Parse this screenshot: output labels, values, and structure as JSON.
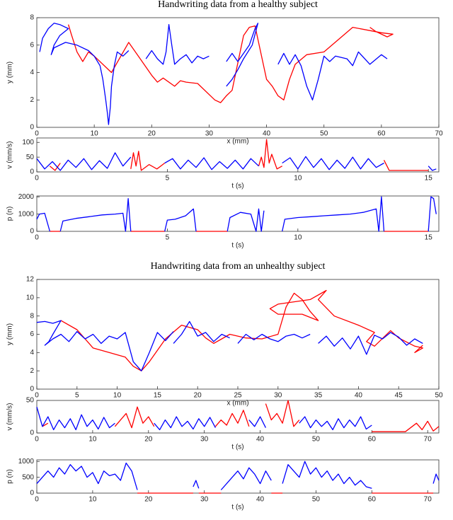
{
  "chart_data": [
    {
      "type": "line",
      "title": "Handwriting data from a healthy subject",
      "xlabel": "x (mm)",
      "ylabel": "y (mm)",
      "xlim": [
        0,
        70
      ],
      "ylim": [
        0,
        8
      ],
      "xticks": [
        0,
        10,
        20,
        30,
        40,
        50,
        60,
        70
      ],
      "yticks": [
        0,
        2,
        4,
        6,
        8
      ],
      "series": [
        {
          "color": "#ff0000",
          "x": [
            5.5,
            6,
            7,
            8,
            9,
            10,
            13,
            16,
            18,
            20,
            21,
            22,
            24,
            25,
            26,
            28,
            31,
            32,
            33,
            34,
            36,
            37,
            38,
            40,
            41,
            42,
            43,
            44,
            45,
            47,
            50,
            55,
            60,
            62,
            61,
            59,
            58
          ],
          "values": [
            7.5,
            6.8,
            5.5,
            4.8,
            5.5,
            5.2,
            4,
            6.2,
            5,
            3.8,
            3.3,
            3.6,
            3,
            3.4,
            3.3,
            3.2,
            2,
            1.8,
            2.3,
            2.7,
            6.7,
            7.3,
            7.4,
            3.5,
            3,
            2.3,
            2,
            3.5,
            4.6,
            5.3,
            5.5,
            7.3,
            6.9,
            6.8,
            6.6,
            7,
            7.3
          ]
        },
        {
          "color": "#0000ff",
          "x": [
            0.5,
            1,
            2,
            3,
            4,
            5.5,
            4,
            3,
            2.5,
            3,
            5,
            7,
            9,
            10,
            11,
            11.5,
            12,
            12.3,
            12.5,
            12.8,
            13,
            13.5,
            14,
            15,
            16,
            null,
            19,
            20,
            21,
            22,
            22.5,
            23,
            23.5,
            24,
            25,
            26,
            27,
            28,
            29,
            30,
            null,
            33,
            34,
            35,
            36,
            37,
            38,
            38.5,
            37.5,
            36,
            35,
            34,
            33,
            null,
            42,
            43,
            44,
            45,
            46,
            47,
            48,
            49,
            50,
            51,
            52,
            54,
            55,
            56,
            58,
            60,
            61
          ],
          "values": [
            5.5,
            6.5,
            7.2,
            7.6,
            7.5,
            7.2,
            6.7,
            6,
            5.3,
            5.8,
            6.2,
            6,
            5.6,
            5.2,
            4.5,
            3.5,
            2,
            1,
            0.2,
            1.5,
            3,
            4.5,
            5.5,
            5.2,
            5.6,
            null,
            5,
            5.6,
            5,
            4.6,
            5.5,
            7.5,
            6,
            4.6,
            5,
            5.3,
            4.7,
            5.2,
            5,
            5.2,
            null,
            4.8,
            5.4,
            4.8,
            5.4,
            6,
            7.2,
            7.6,
            6,
            5,
            4.2,
            3.5,
            3,
            null,
            4.6,
            5.4,
            4.6,
            5.3,
            4.5,
            3,
            2,
            3.5,
            5.2,
            4.8,
            5.2,
            5,
            4.5,
            5.5,
            4.6,
            5.3,
            5
          ]
        }
      ]
    },
    {
      "type": "line",
      "xlabel": "t (s)",
      "ylabel": "v (mm/s)",
      "xlim": [
        0,
        15.4
      ],
      "ylim": [
        0,
        115
      ],
      "xticks": [
        0,
        5,
        10,
        15
      ],
      "yticks": [
        0,
        50,
        100
      ],
      "series": [
        {
          "color": "#ff0000",
          "x": [
            0.5,
            0.7,
            0.9,
            null,
            3.6,
            3.7,
            3.8,
            3.9,
            4.0,
            4.3,
            4.6,
            4.9,
            null,
            8.5,
            8.6,
            8.7,
            8.8,
            8.9,
            9.0,
            9.2,
            9.4,
            null,
            13.3,
            13.5,
            14,
            14.5,
            15
          ],
          "values": [
            20,
            5,
            30,
            null,
            10,
            65,
            20,
            70,
            5,
            25,
            10,
            30,
            null,
            20,
            50,
            15,
            110,
            30,
            60,
            10,
            20,
            null,
            40,
            5,
            5,
            5,
            5
          ]
        },
        {
          "color": "#0000ff",
          "x": [
            0,
            0.3,
            0.6,
            0.9,
            1.2,
            1.5,
            1.8,
            2.1,
            2.4,
            2.7,
            3.0,
            3.3,
            3.6,
            null,
            4.9,
            5.2,
            5.5,
            5.8,
            6.1,
            6.4,
            6.7,
            7.0,
            7.3,
            7.6,
            7.9,
            8.2,
            8.5,
            null,
            9.4,
            9.7,
            10,
            10.3,
            10.6,
            10.9,
            11.2,
            11.5,
            11.8,
            12.1,
            12.4,
            12.7,
            13.0,
            13.3,
            null,
            15,
            15.15,
            15.3
          ],
          "values": [
            45,
            10,
            35,
            5,
            40,
            15,
            45,
            8,
            38,
            12,
            65,
            20,
            50,
            null,
            30,
            45,
            10,
            40,
            15,
            48,
            8,
            35,
            12,
            40,
            10,
            45,
            20,
            null,
            30,
            48,
            10,
            52,
            15,
            45,
            8,
            40,
            12,
            50,
            10,
            45,
            15,
            30,
            null,
            20,
            5,
            10
          ]
        }
      ]
    },
    {
      "type": "line",
      "xlabel": "t (s)",
      "ylabel": "p (n)",
      "xlim": [
        0,
        15.4
      ],
      "ylim": [
        0,
        2050
      ],
      "xticks": [
        0,
        5,
        10,
        15
      ],
      "yticks": [
        0,
        1000,
        2000
      ],
      "series": [
        {
          "color": "#ff0000",
          "x": [
            0.5,
            0.9,
            null,
            3.6,
            4.9,
            null,
            6.1,
            7.3,
            null,
            13.3,
            15
          ],
          "values": [
            0,
            0,
            null,
            0,
            0,
            null,
            0,
            0,
            null,
            0,
            0
          ]
        },
        {
          "color": "#0000ff",
          "x": [
            0,
            0.1,
            0.3,
            0.5,
            null,
            0.9,
            1.0,
            1.5,
            2,
            2.5,
            3,
            3.3,
            3.4,
            3.5,
            3.6,
            null,
            4.9,
            5.0,
            5.3,
            5.7,
            6.0,
            6.1,
            null,
            7.3,
            7.4,
            7.8,
            8.2,
            8.4,
            8.5,
            8.6,
            8.7,
            null,
            9.4,
            9.5,
            10,
            10.5,
            11,
            11.5,
            12,
            12.5,
            13,
            13.1,
            13.2,
            13.3,
            null,
            15,
            15.1,
            15.2,
            15.3
          ],
          "values": [
            700,
            1000,
            1050,
            0,
            null,
            0,
            600,
            750,
            850,
            950,
            1000,
            1050,
            0,
            1900,
            0,
            null,
            0,
            650,
            700,
            900,
            1300,
            0,
            null,
            0,
            800,
            1100,
            1000,
            0,
            1300,
            0,
            1200,
            null,
            0,
            700,
            800,
            850,
            900,
            950,
            1000,
            1100,
            1300,
            0,
            2000,
            0,
            null,
            0,
            2000,
            1900,
            1000
          ]
        }
      ]
    },
    {
      "type": "line",
      "title": "Handwriting data from an unhealthy subject",
      "xlabel": "x (mm)",
      "ylabel": "y (mm)",
      "xlim": [
        0,
        50
      ],
      "ylim": [
        0,
        12
      ],
      "xticks": [
        0,
        5,
        10,
        15,
        20,
        25,
        30,
        35,
        40,
        45,
        50
      ],
      "yticks": [
        0,
        2,
        4,
        6,
        8,
        10,
        12
      ],
      "series": [
        {
          "color": "#ff0000",
          "x": [
            3,
            5,
            7,
            9,
            11,
            12,
            13,
            14,
            16,
            18,
            20,
            21,
            22,
            23,
            24,
            26,
            28,
            30,
            31,
            32,
            33,
            34,
            35,
            33,
            30,
            29,
            30,
            34,
            36,
            35,
            37,
            40,
            42,
            41,
            42,
            44,
            45,
            47,
            48,
            47,
            48
          ],
          "values": [
            7.5,
            6.5,
            4.5,
            4,
            3.5,
            2.5,
            2,
            3,
            5.5,
            7,
            6.5,
            5.6,
            5,
            5.5,
            6,
            5.6,
            5.5,
            6,
            9,
            10.5,
            9.8,
            8.5,
            7.5,
            8.2,
            8.2,
            8.8,
            9.3,
            9.8,
            10.8,
            9.8,
            8,
            7,
            6.2,
            5.2,
            4.7,
            6.4,
            5.6,
            4.7,
            4.5,
            4,
            4.8
          ]
        },
        {
          "color": "#0000ff",
          "x": [
            0,
            1,
            2,
            3,
            2,
            1.5,
            1,
            2,
            3,
            4,
            5,
            6,
            7,
            8,
            9,
            10,
            11,
            12,
            13,
            14,
            15,
            16,
            17,
            null,
            17,
            18,
            19,
            20,
            21,
            22,
            23,
            24,
            null,
            25,
            26,
            27,
            28,
            29,
            30,
            31,
            32,
            33,
            34,
            null,
            35,
            36,
            37,
            38,
            39,
            40,
            41,
            42,
            43,
            44,
            45,
            46,
            47,
            48
          ],
          "values": [
            7.3,
            7.4,
            7.2,
            7.5,
            6,
            5.2,
            4.8,
            5.5,
            6,
            5.2,
            6.3,
            5.5,
            6,
            5,
            5.8,
            5.5,
            6.2,
            3,
            2,
            4,
            6.2,
            5.3,
            6.3,
            null,
            5,
            6,
            7.4,
            5.8,
            6.2,
            5.2,
            6,
            5.6,
            null,
            5,
            6,
            5.4,
            6,
            5.5,
            5.2,
            5.8,
            6,
            5.6,
            6,
            null,
            5,
            5.8,
            4.7,
            5.6,
            4.4,
            5.8,
            3.8,
            5.9,
            5.5,
            6.2,
            5.7,
            4.8,
            5.5,
            5
          ]
        }
      ]
    },
    {
      "type": "line",
      "xlabel": "t (s)",
      "ylabel": "v (mm/s)",
      "xlim": [
        0,
        72
      ],
      "ylim": [
        0,
        50
      ],
      "xticks": [
        0,
        10,
        20,
        30,
        40,
        50,
        60,
        70
      ],
      "yticks": [
        0,
        50
      ],
      "series": [
        {
          "color": "#ff0000",
          "x": [
            1,
            2,
            null,
            14,
            15,
            16,
            17,
            18,
            19,
            20,
            21,
            null,
            32,
            33,
            34,
            35,
            36,
            37,
            38,
            null,
            41,
            42,
            43,
            44,
            45,
            46,
            47,
            null,
            60,
            62,
            64,
            66,
            68,
            69,
            70,
            71,
            72
          ],
          "values": [
            10,
            15,
            null,
            10,
            20,
            30,
            8,
            40,
            15,
            25,
            10,
            null,
            10,
            20,
            12,
            30,
            15,
            35,
            10,
            null,
            45,
            20,
            30,
            15,
            50,
            10,
            20,
            null,
            2,
            2,
            2,
            2,
            15,
            5,
            18,
            3,
            10
          ]
        },
        {
          "color": "#0000ff",
          "x": [
            0,
            1,
            2,
            3,
            4,
            5,
            6,
            7,
            8,
            9,
            10,
            11,
            12,
            13,
            14,
            null,
            21,
            22,
            23,
            24,
            25,
            26,
            27,
            28,
            29,
            30,
            31,
            32,
            null,
            38,
            39,
            40,
            41,
            null,
            47,
            48,
            49,
            50,
            51,
            52,
            53,
            54,
            55,
            56,
            57,
            58,
            59,
            60
          ],
          "values": [
            40,
            10,
            25,
            5,
            20,
            8,
            22,
            5,
            28,
            10,
            20,
            6,
            24,
            8,
            15,
            null,
            15,
            5,
            20,
            8,
            25,
            10,
            18,
            6,
            22,
            10,
            24,
            8,
            null,
            20,
            10,
            25,
            8,
            null,
            15,
            25,
            8,
            20,
            10,
            18,
            5,
            22,
            8,
            20,
            10,
            25,
            6,
            12
          ]
        }
      ]
    },
    {
      "type": "line",
      "xlabel": "t (s)",
      "ylabel": "p (n)",
      "xlim": [
        0,
        72
      ],
      "ylim": [
        0,
        1050
      ],
      "xticks": [
        0,
        10,
        20,
        30,
        40,
        50,
        60,
        70
      ],
      "yticks": [
        0,
        500,
        1000
      ],
      "series": [
        {
          "color": "#ff0000",
          "x": [
            18,
            28,
            null,
            29,
            33,
            null,
            42,
            44,
            null,
            60,
            71
          ],
          "values": [
            0,
            0,
            null,
            0,
            0,
            null,
            0,
            0,
            null,
            0,
            0
          ]
        },
        {
          "color": "#0000ff",
          "x": [
            0,
            1,
            2,
            3,
            4,
            5,
            6,
            7,
            8,
            9,
            10,
            11,
            12,
            13,
            14,
            15,
            16,
            17,
            18,
            null,
            28,
            28.5,
            29,
            null,
            33,
            34,
            35,
            36,
            37,
            38,
            39,
            40,
            41,
            42,
            null,
            44,
            45,
            46,
            47,
            48,
            49,
            50,
            51,
            52,
            53,
            54,
            55,
            56,
            57,
            58,
            59,
            60,
            null,
            71,
            71.5,
            72
          ],
          "values": [
            300,
            500,
            700,
            500,
            800,
            600,
            900,
            700,
            850,
            500,
            650,
            300,
            700,
            550,
            600,
            400,
            950,
            700,
            100,
            null,
            200,
            400,
            150,
            null,
            100,
            300,
            500,
            700,
            450,
            800,
            600,
            300,
            700,
            400,
            null,
            300,
            900,
            700,
            500,
            1000,
            600,
            800,
            500,
            700,
            400,
            600,
            300,
            500,
            250,
            400,
            200,
            150,
            null,
            300,
            600,
            400
          ]
        }
      ]
    }
  ]
}
